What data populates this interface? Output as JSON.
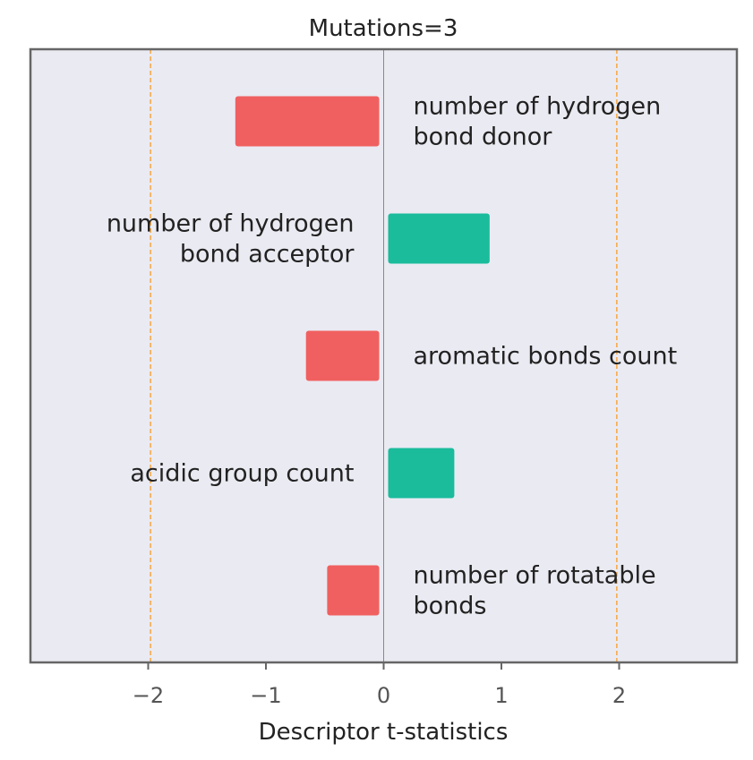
{
  "chart_data": {
    "type": "bar",
    "orientation": "horizontal",
    "title": "Mutations=3",
    "xlabel": "Descriptor t-statistics",
    "ylabel": "",
    "xlim": [
      -3,
      3
    ],
    "xticks": [
      -2,
      -1,
      0,
      1,
      2
    ],
    "xtick_labels": [
      "−2",
      "−1",
      "0",
      "1",
      "2"
    ],
    "reference_lines": [
      -1.98,
      1.98
    ],
    "grid": false,
    "categories": [
      [
        "number of hydrogen",
        "bond donor"
      ],
      [
        "number of hydrogen",
        "bond acceptor"
      ],
      [
        "aromatic bonds count"
      ],
      [
        "acidic group count"
      ],
      [
        "number of rotatable",
        "bonds"
      ]
    ],
    "values": [
      -1.26,
      0.9,
      -0.66,
      0.6,
      -0.48
    ]
  },
  "colors": {
    "negative": "#f06060",
    "positive": "#1abc9c",
    "plot_background": "#eaeaf2",
    "frame": "#666666",
    "reference_line": "#f5a742",
    "zero_line": "#888888"
  }
}
